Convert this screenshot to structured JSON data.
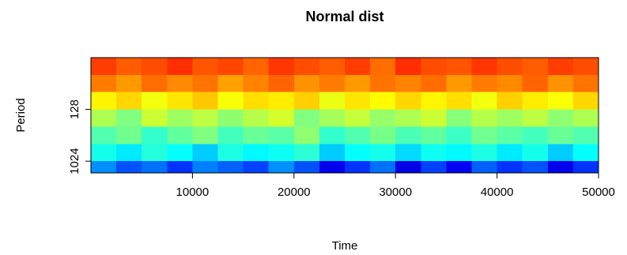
{
  "chart_data": {
    "type": "heatmap",
    "title": "Normal dist",
    "xlabel": "Time",
    "ylabel": "Period",
    "xlim": [
      0,
      50000
    ],
    "xticks": [
      10000,
      20000,
      30000,
      40000,
      50000
    ],
    "ylim": [
      16,
      1640
    ],
    "yticks": [
      128,
      1024
    ],
    "ylog": true,
    "yreversed": true,
    "zlim": [
      0,
      1
    ],
    "colormap": [
      "#00008b",
      "#0000ff",
      "#00ffff",
      "#80ff80",
      "#ffff00",
      "#ff8000",
      "#ff0000"
    ],
    "x_bins": [
      0,
      2500,
      5000,
      7500,
      10000,
      12500,
      15000,
      17500,
      20000,
      22500,
      25000,
      27500,
      30000,
      32500,
      35000,
      37500,
      40000,
      42500,
      45000,
      47500,
      50000
    ],
    "y_bins": [
      16,
      32,
      64,
      128,
      256,
      512,
      1024,
      1640
    ],
    "values": [
      [
        0.92,
        0.88,
        0.9,
        0.94,
        0.89,
        0.91,
        0.87,
        0.93,
        0.9,
        0.88,
        0.92,
        0.86,
        0.94,
        0.9,
        0.89,
        0.93,
        0.9,
        0.88,
        0.92,
        0.9
      ],
      [
        0.84,
        0.8,
        0.86,
        0.82,
        0.85,
        0.79,
        0.83,
        0.87,
        0.81,
        0.84,
        0.8,
        0.85,
        0.83,
        0.86,
        0.8,
        0.84,
        0.82,
        0.87,
        0.81,
        0.85
      ],
      [
        0.68,
        0.72,
        0.65,
        0.7,
        0.74,
        0.66,
        0.71,
        0.69,
        0.73,
        0.64,
        0.7,
        0.67,
        0.72,
        0.68,
        0.71,
        0.65,
        0.73,
        0.69,
        0.66,
        0.72
      ],
      [
        0.56,
        0.5,
        0.6,
        0.54,
        0.58,
        0.52,
        0.57,
        0.61,
        0.5,
        0.55,
        0.59,
        0.53,
        0.56,
        0.6,
        0.51,
        0.57,
        0.54,
        0.58,
        0.52,
        0.56
      ],
      [
        0.44,
        0.48,
        0.4,
        0.46,
        0.5,
        0.42,
        0.47,
        0.45,
        0.52,
        0.4,
        0.44,
        0.49,
        0.43,
        0.46,
        0.41,
        0.48,
        0.45,
        0.42,
        0.47,
        0.44
      ],
      [
        0.36,
        0.32,
        0.38,
        0.34,
        0.3,
        0.37,
        0.33,
        0.35,
        0.39,
        0.3,
        0.34,
        0.36,
        0.31,
        0.35,
        0.33,
        0.37,
        0.32,
        0.36,
        0.3,
        0.34
      ],
      [
        0.26,
        0.22,
        0.24,
        0.2,
        0.25,
        0.23,
        0.21,
        0.26,
        0.22,
        0.14,
        0.2,
        0.24,
        0.13,
        0.21,
        0.15,
        0.23,
        0.2,
        0.22,
        0.14,
        0.2
      ]
    ]
  }
}
